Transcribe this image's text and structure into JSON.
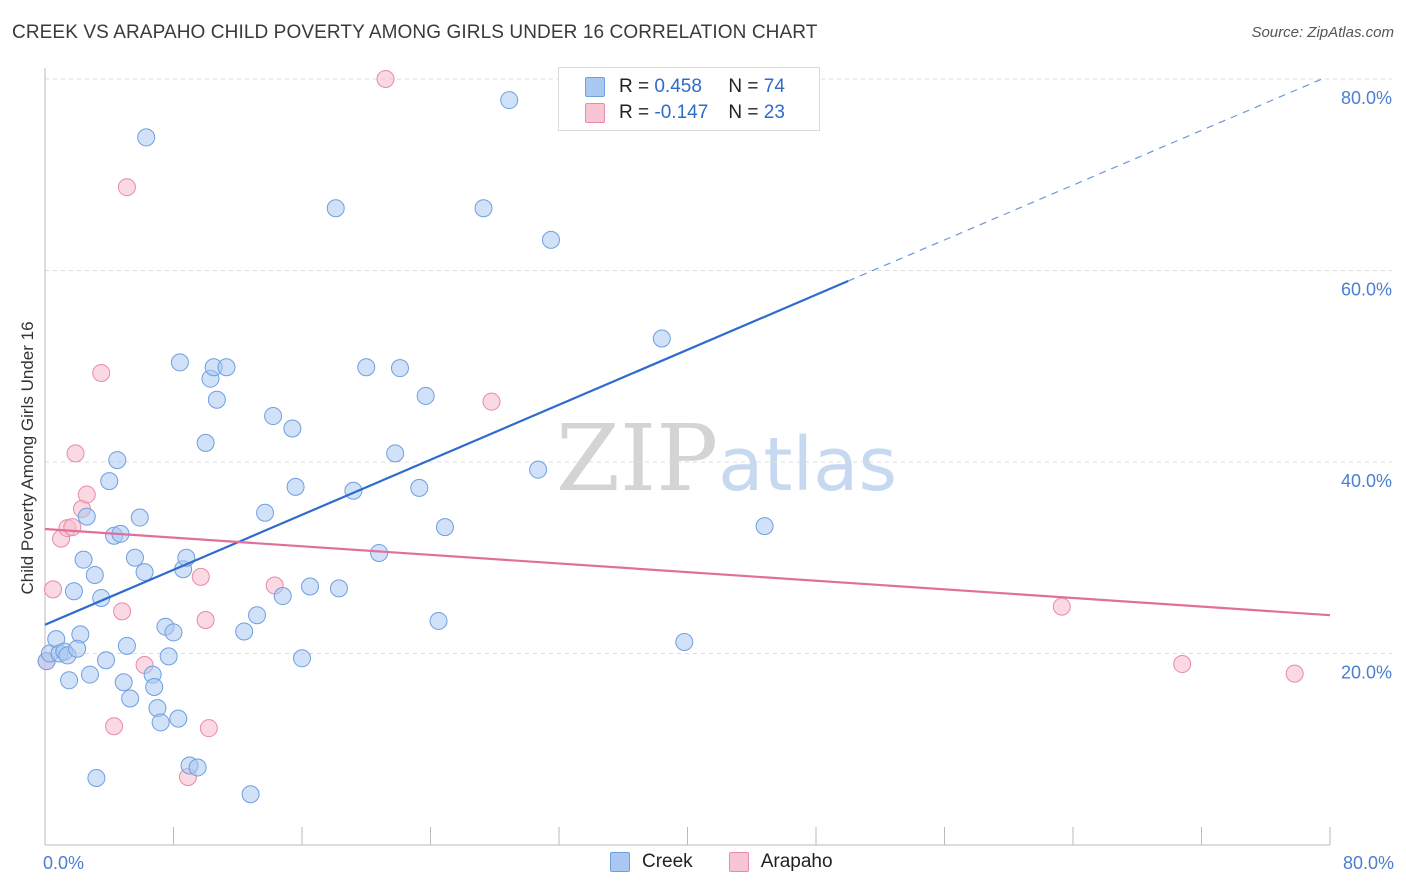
{
  "header": {
    "title": "CREEK VS ARAPAHO CHILD POVERTY AMONG GIRLS UNDER 16 CORRELATION CHART",
    "source": "Source: ZipAtlas.com"
  },
  "watermark": {
    "zip": "ZIP",
    "atlas": "atlas"
  },
  "legend": {
    "rows": [
      {
        "r_label": "R = ",
        "r_value": "0.458",
        "n_label": "N = ",
        "n_value": "74",
        "color": "#a9c8f2"
      },
      {
        "r_label": "R = ",
        "r_value": "-0.147",
        "n_label": "N = ",
        "n_value": "23",
        "color": "#f6b9cb"
      }
    ]
  },
  "bottom_legend": {
    "creek": "Creek",
    "arapaho": "Arapaho"
  },
  "chart_data": {
    "type": "scatter",
    "title": "CREEK VS ARAPAHO CHILD POVERTY AMONG GIRLS UNDER 16 CORRELATION CHART",
    "xlabel": "",
    "ylabel": "Child Poverty Among Girls Under 16",
    "xlim": [
      0,
      80
    ],
    "ylim": [
      0,
      80
    ],
    "x_tick_labels": [
      "0.0%",
      "80.0%"
    ],
    "y_ticks": [
      20,
      40,
      60,
      80
    ],
    "y_tick_labels": [
      "20.0%",
      "40.0%",
      "60.0%",
      "80.0%"
    ],
    "grid": true,
    "colors": {
      "creek_fill": "#a9c8f2",
      "creek_stroke": "#6f9fe0",
      "creek_line": "#2f6bcb",
      "arapaho_fill": "#f6b9cb",
      "arapaho_stroke": "#e98aa8",
      "arapaho_line": "#e0709a"
    },
    "series": [
      {
        "name": "Creek",
        "r": 0.458,
        "n": 74,
        "trend": {
          "x0": 0,
          "y0": 23.0,
          "x1": 50,
          "y1": 58.9,
          "dash_x1": 79.5,
          "dash_y1": 80.0
        },
        "points": [
          [
            0.1,
            19.2
          ],
          [
            0.3,
            20.0
          ],
          [
            0.7,
            21.5
          ],
          [
            0.9,
            20.0
          ],
          [
            1.2,
            20.2
          ],
          [
            1.4,
            19.8
          ],
          [
            1.5,
            17.2
          ],
          [
            1.8,
            26.5
          ],
          [
            2.2,
            22.0
          ],
          [
            2.0,
            20.5
          ],
          [
            2.4,
            29.8
          ],
          [
            2.6,
            34.3
          ],
          [
            2.8,
            17.8
          ],
          [
            3.1,
            28.2
          ],
          [
            3.2,
            7.0
          ],
          [
            3.5,
            25.8
          ],
          [
            3.8,
            19.3
          ],
          [
            4.0,
            38.0
          ],
          [
            4.3,
            32.3
          ],
          [
            4.5,
            40.2
          ],
          [
            4.7,
            32.5
          ],
          [
            4.9,
            17.0
          ],
          [
            5.1,
            20.8
          ],
          [
            5.3,
            15.3
          ],
          [
            5.6,
            30.0
          ],
          [
            5.9,
            34.2
          ],
          [
            6.2,
            28.5
          ],
          [
            6.3,
            73.9
          ],
          [
            6.7,
            17.8
          ],
          [
            6.8,
            16.5
          ],
          [
            7.0,
            14.3
          ],
          [
            7.2,
            12.8
          ],
          [
            7.5,
            22.8
          ],
          [
            7.7,
            19.7
          ],
          [
            8.0,
            22.2
          ],
          [
            8.3,
            13.2
          ],
          [
            8.4,
            50.4
          ],
          [
            8.6,
            28.8
          ],
          [
            8.8,
            30.0
          ],
          [
            9.0,
            8.3
          ],
          [
            9.5,
            8.1
          ],
          [
            10.0,
            42.0
          ],
          [
            10.3,
            48.7
          ],
          [
            10.5,
            49.9
          ],
          [
            10.7,
            46.5
          ],
          [
            11.3,
            49.9
          ],
          [
            12.4,
            22.3
          ],
          [
            12.8,
            5.3
          ],
          [
            13.2,
            24.0
          ],
          [
            13.7,
            34.7
          ],
          [
            14.2,
            44.8
          ],
          [
            14.8,
            26.0
          ],
          [
            15.4,
            43.5
          ],
          [
            15.6,
            37.4
          ],
          [
            16.0,
            19.5
          ],
          [
            16.5,
            27.0
          ],
          [
            18.1,
            66.5
          ],
          [
            18.3,
            26.8
          ],
          [
            19.2,
            37.0
          ],
          [
            20.0,
            49.9
          ],
          [
            20.8,
            30.5
          ],
          [
            21.8,
            40.9
          ],
          [
            22.1,
            49.8
          ],
          [
            23.3,
            37.3
          ],
          [
            23.7,
            46.9
          ],
          [
            24.5,
            23.4
          ],
          [
            24.9,
            33.2
          ],
          [
            27.3,
            66.5
          ],
          [
            28.9,
            77.8
          ],
          [
            30.7,
            39.2
          ],
          [
            31.5,
            63.2
          ],
          [
            38.4,
            52.9
          ],
          [
            39.8,
            21.2
          ],
          [
            44.8,
            33.3
          ]
        ]
      },
      {
        "name": "Arapaho",
        "r": -0.147,
        "n": 23,
        "trend": {
          "x0": 0,
          "y0": 33.0,
          "x1": 80,
          "y1": 24.0
        },
        "points": [
          [
            0.1,
            19.2
          ],
          [
            0.5,
            26.7
          ],
          [
            1.0,
            32.0
          ],
          [
            1.4,
            33.1
          ],
          [
            1.7,
            33.2
          ],
          [
            1.9,
            40.9
          ],
          [
            2.3,
            35.1
          ],
          [
            2.6,
            36.6
          ],
          [
            3.5,
            49.3
          ],
          [
            4.3,
            12.4
          ],
          [
            4.8,
            24.4
          ],
          [
            5.1,
            68.7
          ],
          [
            6.2,
            18.8
          ],
          [
            8.9,
            7.1
          ],
          [
            9.7,
            28.0
          ],
          [
            10.0,
            23.5
          ],
          [
            10.2,
            12.2
          ],
          [
            14.3,
            27.1
          ],
          [
            21.2,
            80.0
          ],
          [
            27.8,
            46.3
          ],
          [
            63.3,
            24.9
          ],
          [
            70.8,
            18.9
          ],
          [
            77.8,
            17.9
          ]
        ]
      }
    ]
  }
}
